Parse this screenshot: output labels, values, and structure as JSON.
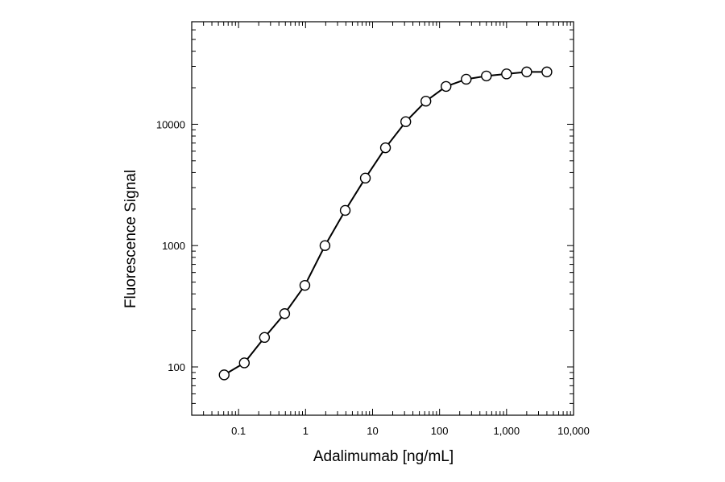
{
  "chart_data": {
    "type": "scatter",
    "xlabel": "Adalimumab [ng/mL]",
    "ylabel": "Fluorescence Signal",
    "x_scale": "log",
    "y_scale": "log",
    "xlim": [
      0.02,
      10000
    ],
    "ylim": [
      40,
      70000
    ],
    "x_ticks": [
      0.1,
      1,
      10,
      100,
      1000,
      10000
    ],
    "x_tick_labels": [
      "0.1",
      "1",
      "10",
      "100",
      "1,000",
      "10,000"
    ],
    "y_ticks": [
      100,
      1000,
      10000
    ],
    "y_tick_labels": [
      "100",
      "1000",
      "10000"
    ],
    "grid": false,
    "legend": "none",
    "series": [
      {
        "connected": true,
        "marker": "open-circle",
        "x": [
          0.061,
          0.122,
          0.244,
          0.488,
          0.977,
          1.95,
          3.91,
          7.81,
          15.6,
          31.3,
          62.5,
          125,
          250,
          500,
          1000,
          2000,
          4000
        ],
        "y": [
          86,
          108,
          175,
          275,
          470,
          1000,
          1950,
          3600,
          6400,
          10500,
          15500,
          20500,
          23500,
          25000,
          26000,
          27000,
          27000
        ]
      }
    ]
  }
}
